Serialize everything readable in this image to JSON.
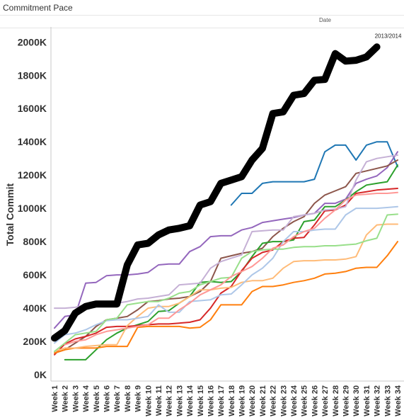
{
  "sheet_title": "Commitment Pace",
  "column_header": "Date",
  "chart_data": {
    "type": "line",
    "ylabel": "Total Commit",
    "xlabel": "",
    "ylim": [
      0,
      2100000
    ],
    "y_ticks": [
      0,
      200000,
      400000,
      600000,
      800000,
      1000000,
      1200000,
      1400000,
      1600000,
      1800000,
      2000000
    ],
    "y_tick_labels": [
      "0K",
      "200K",
      "400K",
      "600K",
      "800K",
      "1000K",
      "1200K",
      "1400K",
      "1600K",
      "1800K",
      "2000K"
    ],
    "categories": [
      "Week 1",
      "Week 2",
      "Week 3",
      "Week 4",
      "Week 5",
      "Week 6",
      "Week 7",
      "Week 8",
      "Week 9",
      "Week 10",
      "Week 11",
      "Week 12",
      "Week 13",
      "Week 14",
      "Week 15",
      "Week 16",
      "Week 17",
      "Week 18",
      "Week 19",
      "Week 20",
      "Week 21",
      "Week 22",
      "Week 23",
      "Week 24",
      "Week 25",
      "Week 26",
      "Week 27",
      "Week 28",
      "Week 29",
      "Week 30",
      "Week 31",
      "Week 32",
      "Week 33",
      "Week 34"
    ],
    "annotation": "2013/2014",
    "grid": false,
    "series": [
      {
        "color": "#000000",
        "width": 10,
        "highlight": true,
        "values": [
          220000,
          265000,
          370000,
          410000,
          425000,
          425000,
          425000,
          660000,
          780000,
          790000,
          840000,
          870000,
          880000,
          895000,
          1020000,
          1040000,
          1150000,
          1170000,
          1190000,
          1290000,
          1360000,
          1570000,
          1580000,
          1680000,
          1690000,
          1770000,
          1775000,
          1930000,
          1885000,
          1890000,
          1910000,
          1970000,
          null,
          null
        ]
      },
      {
        "color": "#1f77b4",
        "width": 2,
        "values": [
          null,
          null,
          null,
          null,
          null,
          null,
          null,
          null,
          null,
          null,
          null,
          null,
          null,
          null,
          null,
          null,
          null,
          1020000,
          1090000,
          1090000,
          1150000,
          1160000,
          1160000,
          1160000,
          1160000,
          1175000,
          1340000,
          1380000,
          1380000,
          1290000,
          1380000,
          1400000,
          1400000,
          1250000
        ]
      },
      {
        "color": "#9467bd",
        "width": 2,
        "values": [
          280000,
          350000,
          360000,
          550000,
          555000,
          595000,
          600000,
          600000,
          605000,
          615000,
          660000,
          665000,
          665000,
          740000,
          770000,
          830000,
          835000,
          835000,
          870000,
          885000,
          915000,
          925000,
          935000,
          945000,
          960000,
          970000,
          1030000,
          1030000,
          1055000,
          1150000,
          1175000,
          1195000,
          1245000,
          1340000
        ]
      },
      {
        "color": "#8c564b",
        "width": 2,
        "values": [
          130000,
          150000,
          190000,
          230000,
          290000,
          330000,
          340000,
          350000,
          390000,
          440000,
          445000,
          455000,
          460000,
          470000,
          500000,
          560000,
          700000,
          715000,
          730000,
          740000,
          760000,
          830000,
          880000,
          920000,
          950000,
          1030000,
          1080000,
          1105000,
          1130000,
          1210000,
          1225000,
          1240000,
          1255000,
          1290000
        ]
      },
      {
        "color": "#2ca02c",
        "width": 2,
        "values": [
          null,
          90000,
          90000,
          90000,
          150000,
          210000,
          250000,
          280000,
          300000,
          320000,
          380000,
          385000,
          430000,
          470000,
          555000,
          560000,
          555000,
          560000,
          620000,
          710000,
          790000,
          800000,
          800000,
          810000,
          920000,
          930000,
          1010000,
          1010000,
          1050000,
          1100000,
          1140000,
          1150000,
          1160000,
          1260000
        ]
      },
      {
        "color": "#d62728",
        "width": 2,
        "values": [
          120000,
          185000,
          215000,
          230000,
          250000,
          285000,
          290000,
          290000,
          295000,
          300000,
          305000,
          305000,
          310000,
          315000,
          330000,
          400000,
          490000,
          530000,
          625000,
          700000,
          735000,
          750000,
          800000,
          820000,
          825000,
          900000,
          985000,
          990000,
          1020000,
          1090000,
          1100000,
          1110000,
          1115000,
          1120000
        ]
      },
      {
        "color": "#ff7f0e",
        "width": 2,
        "values": [
          130000,
          150000,
          160000,
          160000,
          160000,
          170000,
          170000,
          170000,
          285000,
          290000,
          290000,
          290000,
          290000,
          280000,
          285000,
          330000,
          420000,
          420000,
          420000,
          500000,
          530000,
          530000,
          540000,
          555000,
          565000,
          580000,
          605000,
          610000,
          620000,
          640000,
          645000,
          645000,
          715000,
          800000
        ]
      },
      {
        "color": "#ffbb78",
        "width": 2,
        "values": [
          140000,
          160000,
          160000,
          170000,
          175000,
          180000,
          180000,
          295000,
          350000,
          400000,
          410000,
          410000,
          430000,
          470000,
          510000,
          510000,
          520000,
          525000,
          555000,
          565000,
          565000,
          580000,
          640000,
          680000,
          685000,
          685000,
          690000,
          690000,
          695000,
          710000,
          840000,
          900000,
          905000,
          905000
        ]
      },
      {
        "color": "#aec7e8",
        "width": 2,
        "values": [
          190000,
          240000,
          250000,
          270000,
          300000,
          325000,
          330000,
          330000,
          340000,
          350000,
          420000,
          375000,
          375000,
          440000,
          445000,
          450000,
          480000,
          485000,
          540000,
          600000,
          640000,
          700000,
          800000,
          860000,
          860000,
          870000,
          875000,
          875000,
          960000,
          1000000,
          1000000,
          1000000,
          1005000,
          1010000
        ]
      },
      {
        "color": "#98df8a",
        "width": 2,
        "values": [
          140000,
          190000,
          240000,
          250000,
          260000,
          330000,
          340000,
          420000,
          430000,
          440000,
          440000,
          460000,
          490000,
          500000,
          540000,
          560000,
          580000,
          585000,
          700000,
          740000,
          750000,
          755000,
          755000,
          765000,
          770000,
          770000,
          775000,
          775000,
          780000,
          785000,
          805000,
          820000,
          960000,
          965000
        ]
      },
      {
        "color": "#c5b0d5",
        "width": 2,
        "values": [
          400000,
          400000,
          405000,
          420000,
          430000,
          430000,
          430000,
          440000,
          455000,
          460000,
          470000,
          480000,
          540000,
          545000,
          550000,
          640000,
          680000,
          700000,
          720000,
          860000,
          865000,
          870000,
          870000,
          950000,
          960000,
          970000,
          990000,
          995000,
          1010000,
          1170000,
          1280000,
          1300000,
          1310000,
          1320000
        ]
      },
      {
        "color": "#ff9896",
        "width": 2,
        "values": [
          null,
          180000,
          200000,
          210000,
          240000,
          260000,
          270000,
          280000,
          290000,
          300000,
          340000,
          340000,
          390000,
          430000,
          480000,
          510000,
          540000,
          590000,
          620000,
          650000,
          700000,
          760000,
          780000,
          830000,
          860000,
          880000,
          940000,
          990000,
          1050000,
          1080000,
          1085000,
          1090000,
          1090000,
          1095000
        ]
      }
    ]
  }
}
